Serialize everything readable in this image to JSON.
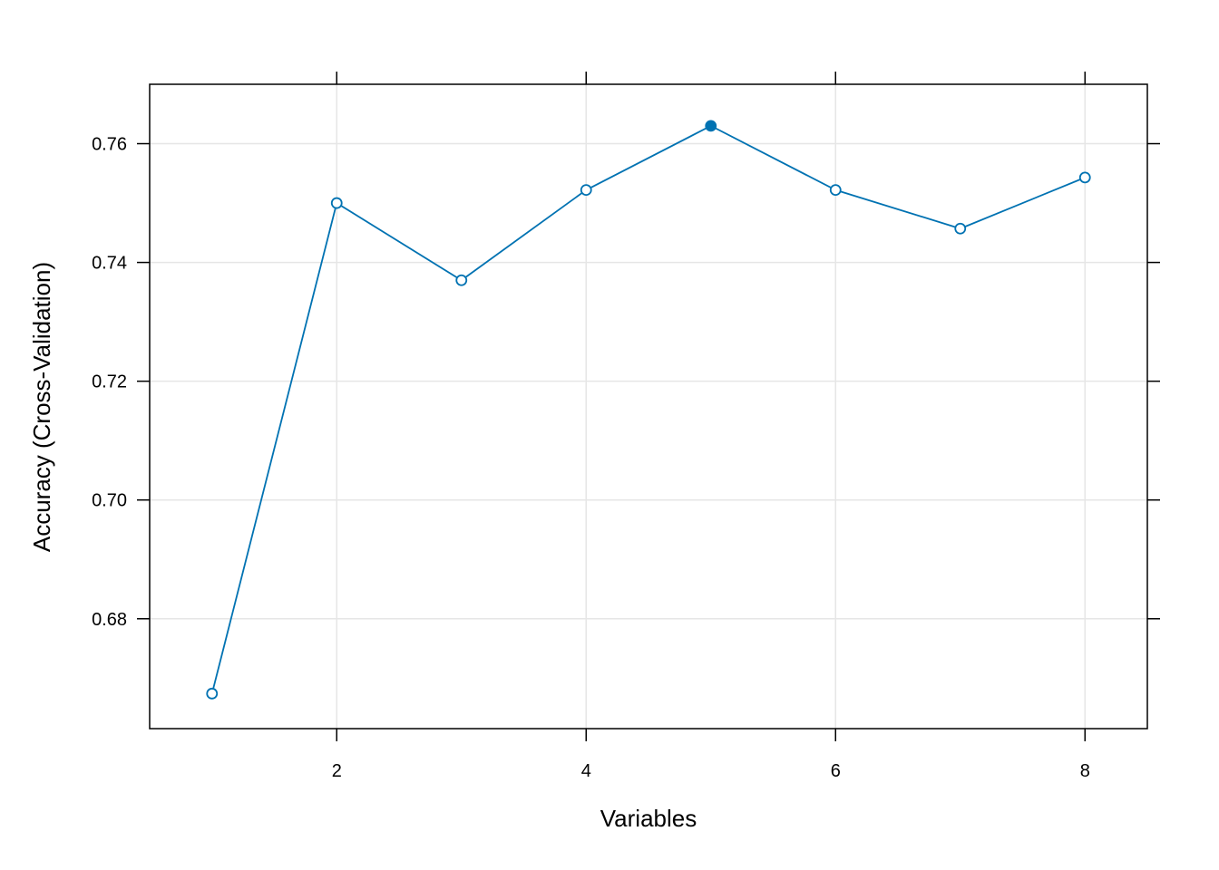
{
  "chart_data": {
    "type": "line",
    "title": "",
    "xlabel": "Variables",
    "ylabel": "Accuracy (Cross-Validation)",
    "x": [
      1,
      2,
      3,
      4,
      5,
      6,
      7,
      8
    ],
    "series": [
      {
        "values": [
          0.6674,
          0.75,
          0.737,
          0.7522,
          0.763,
          0.7522,
          0.7457,
          0.7543
        ]
      }
    ],
    "selected_x": 5,
    "xlim": [
      0.5,
      8.5
    ],
    "ylim": [
      0.6615,
      0.77
    ],
    "xticks": [
      2,
      4,
      6,
      8
    ],
    "yticks": [
      0.68,
      0.7,
      0.72,
      0.74,
      0.76
    ],
    "xtick_labels": [
      "2",
      "4",
      "6",
      "8"
    ],
    "ytick_labels": [
      "0.68",
      "0.70",
      "0.72",
      "0.74",
      "0.76"
    ],
    "grid": true,
    "line_color": "#0072b2",
    "grid_color": "#e6e6e6"
  }
}
